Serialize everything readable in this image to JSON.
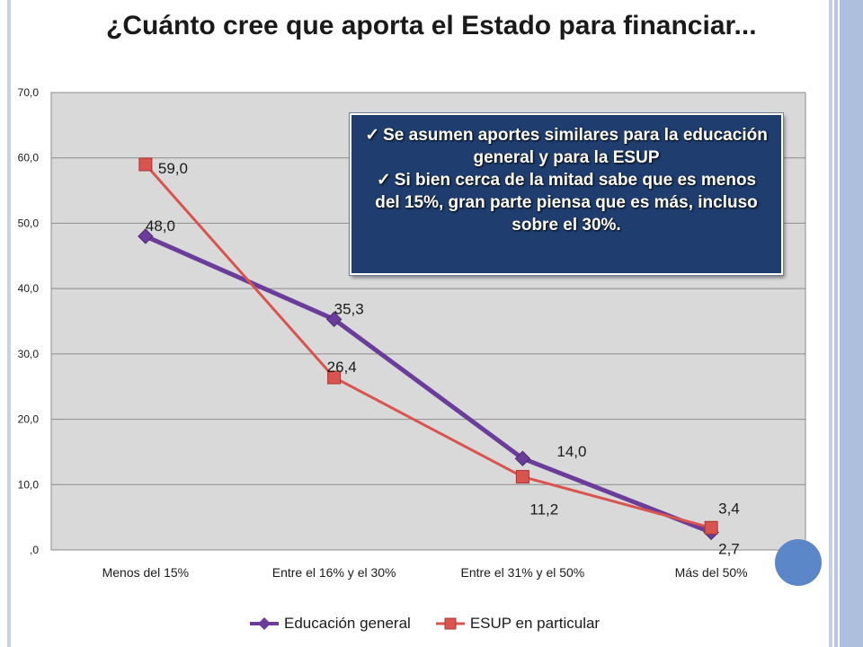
{
  "title": "¿Cuánto cree que aporta el Estado para financiar...",
  "callout": {
    "line1_bullet": "✓",
    "line1": "Se asumen aportes similares para la educación general y para la ESUP",
    "line2_bullet": "✓",
    "line2": "Si bien cerca de la mitad sabe que es menos del 15%, gran parte piensa que es más, incluso sobre el 30%."
  },
  "colors": {
    "series1": "#6a3d9a",
    "series2": "#d9534f",
    "plot_bg": "#d9d9d9",
    "callout_bg": "#1f3d6e"
  },
  "chart_data": {
    "type": "line",
    "title": "",
    "xlabel": "",
    "ylabel": "",
    "categories": [
      "Menos del 15%",
      "Entre el 16% y el 30%",
      "Entre el 31% y el 50%",
      "Más del 50%"
    ],
    "ylim": [
      0,
      70
    ],
    "yticks": [
      0,
      10,
      20,
      30,
      40,
      50,
      60,
      70
    ],
    "ytick_labels": [
      ",0",
      "10,0",
      "20,0",
      "30,0",
      "40,0",
      "50,0",
      "60,0",
      "70,0"
    ],
    "grid": true,
    "legend_position": "bottom",
    "series": [
      {
        "name": "Educación general",
        "values": [
          48.0,
          35.3,
          14.0,
          2.7
        ],
        "labels": [
          "48,0",
          "35,3",
          "14,0",
          "2,7"
        ],
        "marker": "diamond"
      },
      {
        "name": "ESUP en particular",
        "values": [
          59.0,
          26.4,
          11.2,
          3.4
        ],
        "labels": [
          "59,0",
          "26,4",
          "11,2",
          "3,4"
        ],
        "marker": "square"
      }
    ]
  }
}
